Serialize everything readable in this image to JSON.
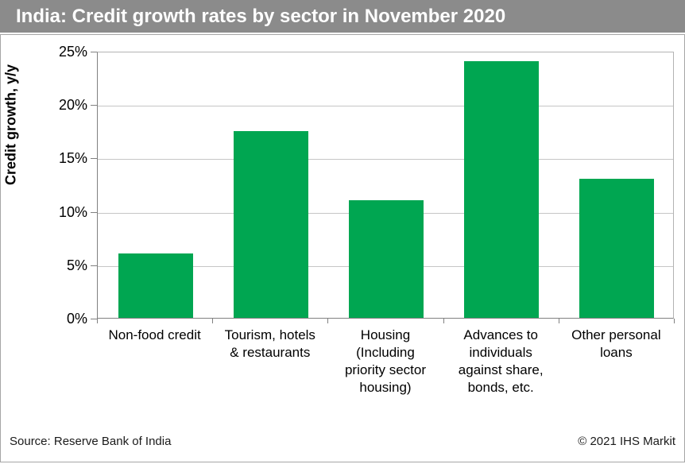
{
  "header": {
    "title": "India: Credit growth rates by sector in November 2020"
  },
  "footer": {
    "source": "Source: Reserve Bank of India",
    "copyright": "© 2021 IHS Markit"
  },
  "colors": {
    "titlebar_bg": "#8b8b8b",
    "bar_green": "#00a651",
    "gridline": "#c6c6c6",
    "axis": "#808080"
  },
  "chart_data": {
    "type": "bar",
    "title": "India: Credit growth rates by sector in November 2020",
    "categories": [
      "Non-food credit",
      "Tourism, hotels & restaurants",
      "Housing (Including priority sector housing)",
      "Advances to individuals against share, bonds, etc.",
      "Other personal loans"
    ],
    "categories_display": [
      "Non-food credit",
      "Tourism, hotels\n& restaurants",
      "Housing\n(Including\npriority sector\nhousing)",
      "Advances to\nindividuals\nagainst share,\nbonds, etc.",
      "Other personal\nloans"
    ],
    "values": [
      6,
      17.5,
      11,
      24,
      13
    ],
    "xlabel": "",
    "ylabel": "Credit growth, y/y",
    "ylim": [
      0,
      25
    ],
    "ytick_step": 5,
    "ytick_labels": [
      "0%",
      "5%",
      "10%",
      "15%",
      "20%",
      "25%"
    ],
    "grid": true,
    "legend_position": "none",
    "bar_color": "#00a651"
  }
}
